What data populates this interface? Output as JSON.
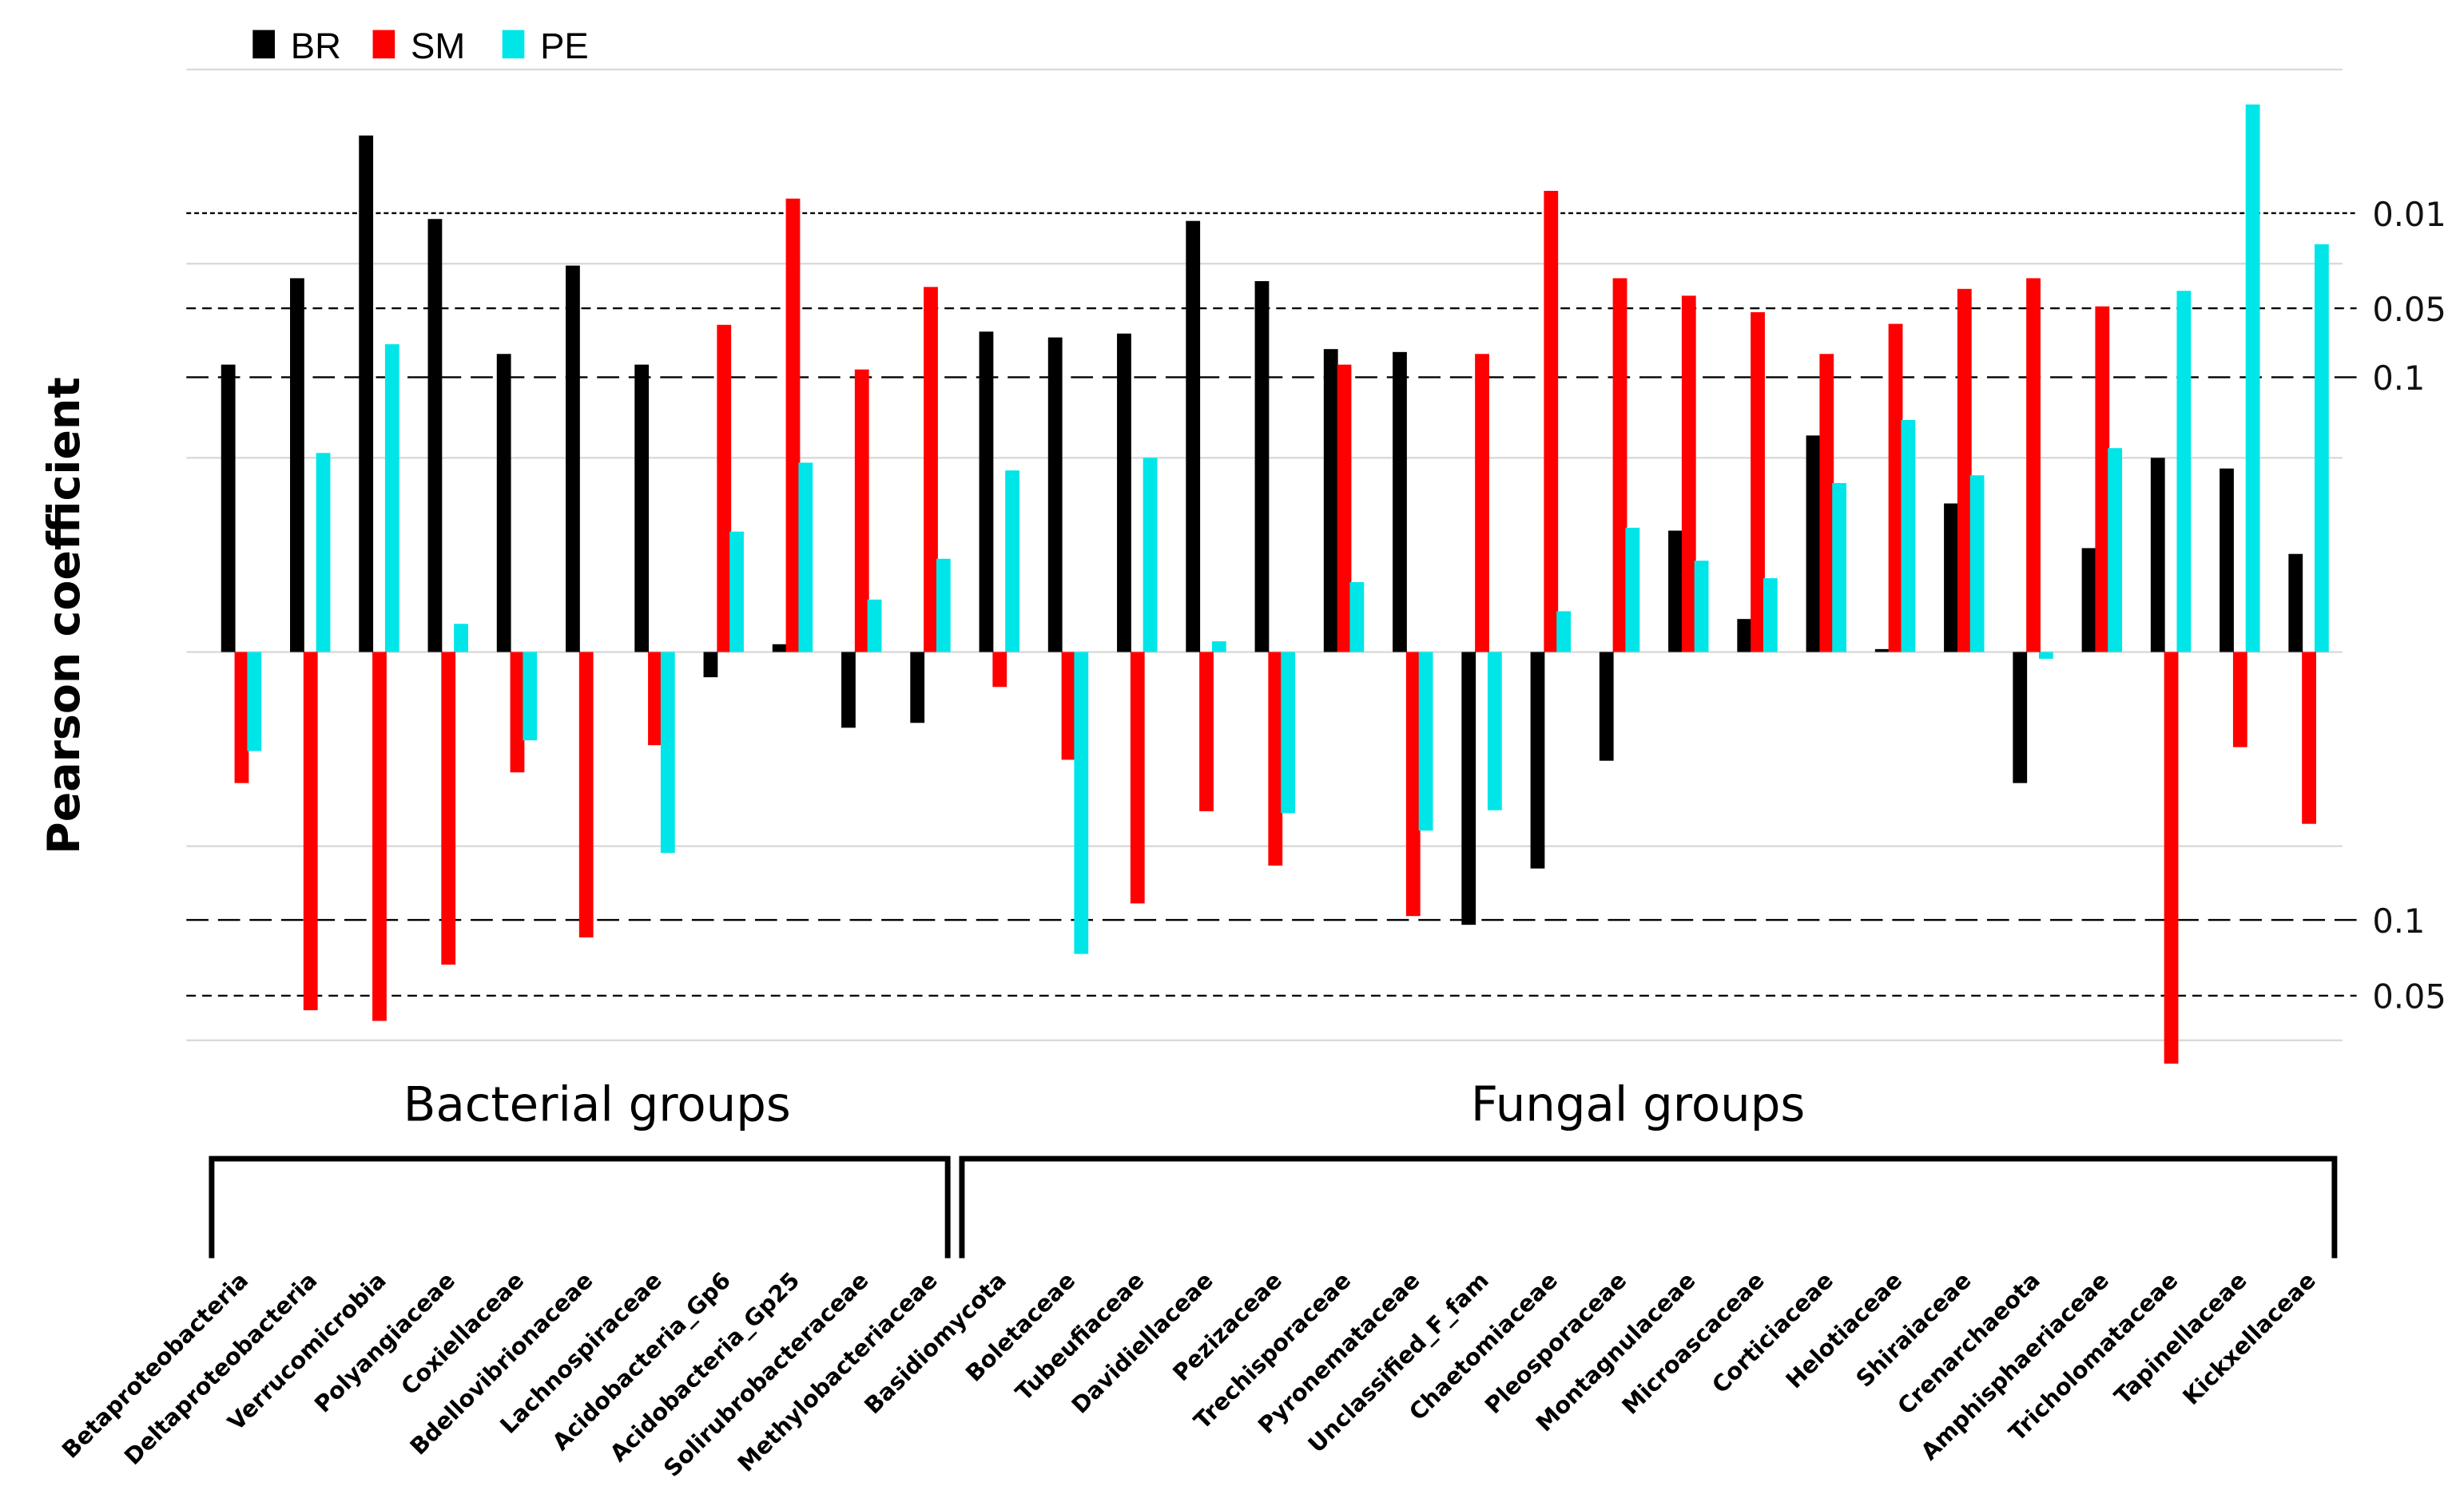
{
  "chart_data": {
    "type": "bar",
    "title": "",
    "ylabel": "Pearson coefficient",
    "xlabel": "",
    "ylim": [
      -0.42,
      0.62
    ],
    "gridlines": [
      -0.4,
      -0.2,
      0,
      0.2,
      0.4,
      0.6
    ],
    "grid": true,
    "legend_placement": "top-left",
    "significance_lines": [
      {
        "label": "0.01",
        "value": 0.452,
        "style": "dotted"
      },
      {
        "label": "0.05",
        "value": 0.354,
        "style": "dashed"
      },
      {
        "label": "0.1",
        "value": 0.283,
        "style": "long-dashed"
      },
      {
        "label": "0.1",
        "value": -0.276,
        "style": "long-dashed"
      },
      {
        "label": "0.05",
        "value": -0.354,
        "style": "dashed"
      }
    ],
    "groups": [
      {
        "label": "Bacterial groups",
        "from": 0,
        "to": 10
      },
      {
        "label": "Fungal groups",
        "from": 11,
        "to": 30
      }
    ],
    "categories": [
      "Betaproteobacteria",
      "Deltaproteobacteria",
      "Verrucomicrobia",
      "Polyangiaceae",
      "Coxiellaceae",
      "Bdellovibrionaceae",
      "Lachnospiraceae",
      "Acidobacteria_Gp6",
      "Acidobacteria_Gp25",
      "Solirubrobacteraceae",
      "Methylobacteriaceae",
      "Basidiomycota",
      "Boletaceae",
      "Tubeufiaceae",
      "Davidiellaceae",
      "Pezizaceae",
      "Trechisporaceae",
      "Pyronemataceae",
      "Unclassified_F_fam",
      "Chaetomiaceae",
      "Pleosporaceae",
      "Montagnulaceae",
      "Microascaceae",
      "Corticiaceae",
      "Helotiaceae",
      "Shiraiaceae",
      "Crenarchaeota",
      "Amphisphaeriaceae",
      "Tricholomataceae",
      "Tapinellaceae",
      "Kickxellaceae"
    ],
    "series": [
      {
        "name": "BR",
        "color": "#000000",
        "values": [
          0.296,
          0.385,
          0.532,
          0.446,
          0.307,
          0.398,
          0.296,
          -0.026,
          0.008,
          -0.078,
          -0.073,
          0.33,
          0.324,
          0.328,
          0.444,
          0.382,
          0.312,
          0.309,
          -0.281,
          -0.223,
          -0.112,
          0.125,
          0.034,
          0.223,
          0.003,
          0.153,
          -0.135,
          0.107,
          0.2,
          0.189,
          0.101
        ]
      },
      {
        "name": "SM",
        "color": "#ff0000",
        "values": [
          -0.135,
          -0.369,
          -0.38,
          -0.322,
          -0.124,
          -0.294,
          -0.096,
          0.337,
          0.467,
          0.291,
          0.376,
          -0.036,
          -0.111,
          -0.259,
          -0.164,
          -0.22,
          0.296,
          -0.272,
          0.307,
          0.475,
          0.385,
          0.367,
          0.35,
          0.307,
          0.338,
          0.374,
          0.385,
          0.356,
          -0.424,
          -0.098,
          -0.177
        ]
      },
      {
        "name": "PE",
        "color": "#00e5e8",
        "values": [
          -0.102,
          0.205,
          0.317,
          0.029,
          -0.091,
          0,
          -0.207,
          0.124,
          0.195,
          0.054,
          0.096,
          0.187,
          -0.311,
          0.2,
          0.011,
          -0.166,
          0.072,
          -0.184,
          -0.163,
          0.042,
          0.128,
          0.094,
          0.076,
          0.174,
          0.239,
          0.182,
          -0.007,
          0.21,
          0.372,
          0.564,
          0.42
        ]
      }
    ]
  }
}
